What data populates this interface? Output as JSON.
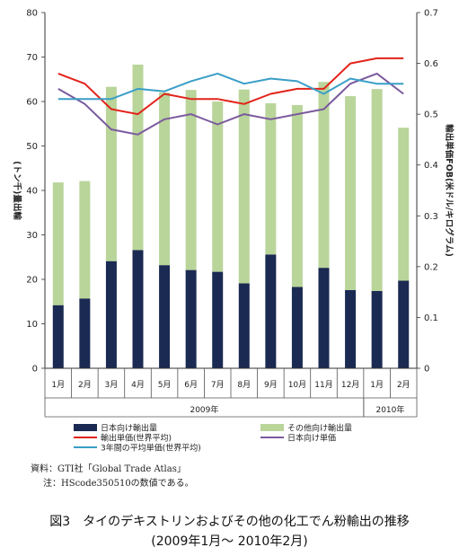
{
  "chart_data": {
    "type": "bar",
    "categories": [
      "1月",
      "2月",
      "3月",
      "4月",
      "5月",
      "6月",
      "7月",
      "8月",
      "9月",
      "10月",
      "11月",
      "12月",
      "1月",
      "2月"
    ],
    "years": [
      {
        "label": "2009年",
        "start_index": 0,
        "end_index": 11
      },
      {
        "label": "2010年",
        "start_index": 12,
        "end_index": 13
      }
    ],
    "left_axis": {
      "label": "(トン千)量出輸",
      "ylim": [
        0,
        80
      ],
      "ticks": [
        0,
        10,
        20,
        30,
        40,
        50,
        60,
        70,
        80
      ]
    },
    "right_axis": {
      "label": "輸出単価FOB(米ドル/キログラム)",
      "ylim": [
        0,
        0.7
      ],
      "ticks": [
        "0",
        "0.1",
        "0.2",
        "0.3",
        "0.4",
        "0.5",
        "0.6",
        "0.7"
      ]
    },
    "bar_series": [
      {
        "name": "日本向け輸出量",
        "color": "#1b2a52",
        "values": [
          14.2,
          15.7,
          24.1,
          26.6,
          23.2,
          22.1,
          21.7,
          19.1,
          25.6,
          18.3,
          22.6,
          17.6,
          17.4,
          19.7
        ]
      },
      {
        "name": "その他向け輸出量",
        "color": "#b9d59a",
        "values": [
          27.6,
          26.4,
          39.2,
          41.7,
          38.8,
          40.5,
          38.3,
          43.6,
          34.0,
          40.9,
          41.8,
          43.6,
          45.4,
          34.4
        ]
      }
    ],
    "line_series": [
      {
        "name": "輸出単価(世界平均)",
        "color": "#e2231a",
        "values": [
          0.58,
          0.56,
          0.51,
          0.5,
          0.54,
          0.53,
          0.53,
          0.52,
          0.54,
          0.55,
          0.55,
          0.6,
          0.61,
          0.61
        ]
      },
      {
        "name": "日本向け単価",
        "color": "#7b5a9e",
        "values": [
          0.55,
          0.52,
          0.47,
          0.46,
          0.49,
          0.5,
          0.48,
          0.5,
          0.49,
          0.5,
          0.51,
          0.56,
          0.58,
          0.54
        ]
      },
      {
        "name": "3年間の平均単価(世界平均)",
        "color": "#3a9ec7",
        "values": [
          0.53,
          0.53,
          0.53,
          0.55,
          0.545,
          0.565,
          0.58,
          0.56,
          0.57,
          0.565,
          0.54,
          0.57,
          0.56,
          0.56
        ]
      }
    ],
    "legend": "bottom",
    "grid": false
  },
  "notes": {
    "source": "資料：GTI社「Global Trade Atlas」",
    "remark": "注：HScode350510の数値である。"
  },
  "caption": {
    "line1": "図3　タイのデキストリンおよびその他の化工でん粉輸出の推移",
    "line2": "(2009年1月〜 2010年2月)"
  }
}
